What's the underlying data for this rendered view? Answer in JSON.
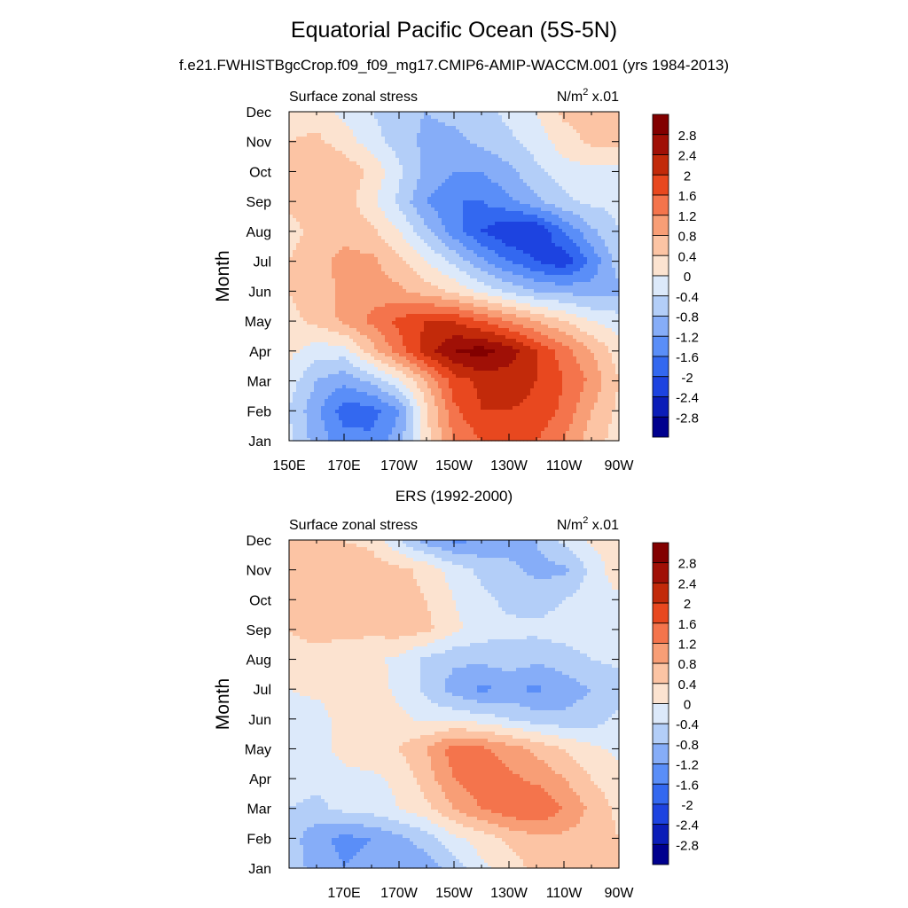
{
  "figure": {
    "title": "Equatorial Pacific Ocean (5S-5N)",
    "subtitle": "f.e21.FWHISTBgcCrop.f09_f09_mg17.CMIP6-AMIP-WACCM.001 (yrs 1984-2013)"
  },
  "colors": {
    "levels": [
      -2.8,
      -2.4,
      -2.0,
      -1.6,
      -1.2,
      -0.8,
      -0.4,
      0,
      0.4,
      0.8,
      1.2,
      1.6,
      2.0,
      2.4,
      2.8
    ],
    "palette": [
      "#00008e",
      "#0b1db8",
      "#1d43e0",
      "#3368f0",
      "#5a8ef8",
      "#86adf8",
      "#b3cef8",
      "#dce9fa",
      "#fce3d0",
      "#fcc4a4",
      "#f89e76",
      "#f4744c",
      "#e8481f",
      "#c22a0a",
      "#a01006",
      "#820000"
    ]
  },
  "chart_data": [
    {
      "type": "heatmap",
      "title": "",
      "left_label": "Surface zonal stress",
      "units_text": "N/m",
      "units_sup": "2",
      "units_tail": " x.01",
      "ylabel": "Month",
      "xlabel": "",
      "x_range": [
        150,
        270
      ],
      "x_units": "degrees east",
      "x_ticks": [
        150,
        170,
        190,
        210,
        230,
        250,
        270
      ],
      "x_tick_labels": [
        "150E",
        "170E",
        "170W",
        "150W",
        "130W",
        "110W",
        "90W"
      ],
      "y_tick_labels": [
        "Jan",
        "Feb",
        "Mar",
        "Apr",
        "May",
        "Jun",
        "Jul",
        "Aug",
        "Sep",
        "Oct",
        "Nov",
        "Dec"
      ],
      "colorbar_labels": [
        "2.8",
        "2.4",
        "2",
        "1.6",
        "1.2",
        "0.8",
        "0.4",
        "0",
        "-0.4",
        "-0.8",
        "-1.2",
        "-1.6",
        "-2",
        "-2.4",
        "-2.8"
      ],
      "x": [
        150,
        160,
        170,
        180,
        190,
        200,
        210,
        220,
        230,
        240,
        250,
        260,
        270
      ],
      "y": [
        "Jan",
        "Feb",
        "Mar",
        "Apr",
        "May",
        "Jun",
        "Jul",
        "Aug",
        "Sep",
        "Oct",
        "Nov",
        "Dec"
      ],
      "values": [
        [
          -0.3,
          -1.0,
          -1.4,
          -1.5,
          -1.0,
          0.3,
          1.2,
          1.6,
          1.8,
          1.6,
          1.2,
          0.6,
          0.2
        ],
        [
          -0.4,
          -1.1,
          -1.8,
          -1.8,
          -1.2,
          0.3,
          1.5,
          2.0,
          2.0,
          1.9,
          1.5,
          0.8,
          0.3
        ],
        [
          -0.2,
          -0.8,
          -1.1,
          -0.7,
          -0.1,
          0.8,
          1.8,
          2.1,
          2.2,
          2.0,
          1.6,
          1.1,
          0.4
        ],
        [
          0.1,
          -0.2,
          -0.2,
          0.6,
          1.4,
          2.2,
          2.8,
          3.0,
          2.6,
          2.0,
          1.4,
          0.8,
          0.2
        ],
        [
          0.3,
          0.5,
          0.9,
          1.3,
          1.7,
          2.0,
          2.0,
          1.6,
          1.2,
          0.8,
          0.4,
          0.0,
          -0.2
        ],
        [
          0.4,
          0.6,
          0.9,
          1.0,
          0.9,
          0.6,
          0.3,
          -0.1,
          -0.5,
          -0.8,
          -0.9,
          -1.0,
          -0.9
        ],
        [
          0.4,
          0.7,
          0.9,
          0.9,
          0.5,
          0.0,
          -0.5,
          -1.1,
          -1.6,
          -2.0,
          -2.3,
          -1.5,
          -0.6
        ],
        [
          0.2,
          0.6,
          0.7,
          0.5,
          0.0,
          -0.7,
          -1.4,
          -2.0,
          -2.4,
          -2.4,
          -1.6,
          -0.9,
          -0.4
        ],
        [
          0.5,
          0.7,
          0.6,
          0.1,
          -0.5,
          -1.2,
          -1.6,
          -1.6,
          -1.3,
          -0.9,
          -0.5,
          -0.3,
          -0.3
        ],
        [
          0.6,
          0.8,
          0.7,
          0.3,
          -0.3,
          -0.9,
          -1.2,
          -1.2,
          -0.9,
          -0.5,
          -0.2,
          -0.1,
          -0.2
        ],
        [
          0.4,
          0.5,
          0.2,
          -0.2,
          -0.6,
          -0.9,
          -0.9,
          -0.7,
          -0.5,
          -0.2,
          0.2,
          0.5,
          0.5
        ],
        [
          0.2,
          0.2,
          -0.1,
          -0.4,
          -0.7,
          -0.8,
          -0.7,
          -0.5,
          -0.3,
          0.0,
          0.5,
          0.6,
          0.6
        ]
      ]
    },
    {
      "type": "heatmap",
      "title": "ERS (1992-2000)",
      "left_label": "Surface zonal stress",
      "units_text": "N/m",
      "units_sup": "2",
      "units_tail": " x.01",
      "ylabel": "Month",
      "xlabel": "",
      "x_range": [
        150,
        270
      ],
      "x_units": "degrees east",
      "x_ticks": [
        170,
        190,
        210,
        230,
        250,
        270
      ],
      "x_tick_labels": [
        "170E",
        "170W",
        "150W",
        "130W",
        "110W",
        "90W"
      ],
      "y_tick_labels": [
        "Jan",
        "Feb",
        "Mar",
        "Apr",
        "May",
        "Jun",
        "Jul",
        "Aug",
        "Sep",
        "Oct",
        "Nov",
        "Dec"
      ],
      "colorbar_labels": [
        "2.8",
        "2.4",
        "2",
        "1.6",
        "1.2",
        "0.8",
        "0.4",
        "0",
        "-0.4",
        "-0.8",
        "-1.2",
        "-1.6",
        "-2",
        "-2.4",
        "-2.8"
      ],
      "x": [
        150,
        160,
        170,
        180,
        190,
        200,
        210,
        220,
        230,
        240,
        250,
        260,
        270
      ],
      "y": [
        "Jan",
        "Feb",
        "Mar",
        "Apr",
        "May",
        "Jun",
        "Jul",
        "Aug",
        "Sep",
        "Oct",
        "Nov",
        "Dec"
      ],
      "values": [
        [
          -0.5,
          -1.0,
          -1.2,
          -1.1,
          -1.2,
          -1.0,
          -0.6,
          -0.1,
          0.2,
          0.5,
          0.6,
          0.5,
          0.6
        ],
        [
          -0.6,
          -1.1,
          -1.3,
          -1.2,
          -0.9,
          -0.6,
          -0.1,
          0.2,
          0.5,
          0.7,
          0.7,
          0.6,
          0.4
        ],
        [
          -0.4,
          -0.5,
          -0.3,
          -0.2,
          0.0,
          0.3,
          0.8,
          1.2,
          1.5,
          1.6,
          1.2,
          0.7,
          0.3
        ],
        [
          -0.2,
          -0.3,
          -0.1,
          -0.1,
          0.1,
          0.6,
          1.2,
          1.5,
          1.3,
          1.1,
          0.8,
          0.4,
          0.1
        ],
        [
          -0.1,
          -0.1,
          0.1,
          0.3,
          0.4,
          0.8,
          1.4,
          1.3,
          1.0,
          0.7,
          0.4,
          0.1,
          -0.1
        ],
        [
          -0.2,
          -0.2,
          0.2,
          0.3,
          0.1,
          -0.1,
          -0.1,
          -0.2,
          -0.4,
          -0.6,
          -0.7,
          -0.6,
          -0.3
        ],
        [
          0.0,
          0.1,
          0.2,
          0.2,
          -0.1,
          -0.5,
          -1.0,
          -1.3,
          -1.1,
          -1.3,
          -1.0,
          -0.8,
          -0.6
        ],
        [
          0.3,
          0.3,
          0.2,
          0.1,
          -0.1,
          -0.5,
          -0.7,
          -0.7,
          -0.6,
          -0.7,
          -0.6,
          -0.4,
          -0.3
        ],
        [
          0.4,
          0.5,
          0.5,
          0.5,
          0.6,
          0.5,
          0.1,
          -0.2,
          -0.3,
          -0.3,
          -0.2,
          -0.1,
          -0.2
        ],
        [
          0.4,
          0.6,
          0.5,
          0.6,
          0.5,
          0.4,
          0.0,
          -0.3,
          -0.5,
          -0.6,
          -0.4,
          -0.2,
          -0.1
        ],
        [
          0.5,
          0.5,
          0.6,
          0.6,
          0.5,
          0.3,
          -0.2,
          -0.5,
          -0.7,
          -0.9,
          -0.9,
          -0.3,
          0.3
        ],
        [
          0.5,
          0.4,
          0.4,
          0.3,
          -0.4,
          -1.0,
          -1.3,
          -1.2,
          -1.0,
          -0.8,
          -0.3,
          0.1,
          0.2
        ]
      ]
    }
  ]
}
